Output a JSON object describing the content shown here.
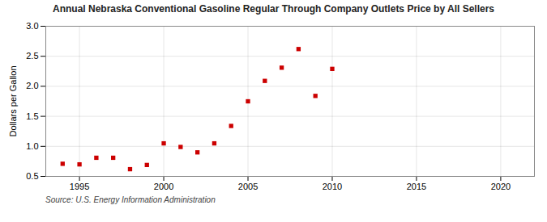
{
  "chart_data": {
    "type": "scatter",
    "title": "Annual Nebraska Conventional Gasoline Regular Through Company Outlets Price by All Sellers",
    "ylabel": "Dollars per Gallon",
    "annotations": [
      "Source: U.S. Energy Information Administration"
    ],
    "x": [
      1994,
      1995,
      1996,
      1997,
      1998,
      1999,
      2000,
      2001,
      2002,
      2003,
      2004,
      2005,
      2006,
      2007,
      2008,
      2009,
      2010
    ],
    "values": [
      0.71,
      0.7,
      0.81,
      0.81,
      0.62,
      0.69,
      1.05,
      0.99,
      0.9,
      1.05,
      1.34,
      1.75,
      2.09,
      2.31,
      2.62,
      1.84,
      2.29
    ],
    "color": "#cc0000",
    "marker": "square",
    "xlim": [
      1993,
      2022
    ],
    "ylim": [
      0.5,
      3.0
    ],
    "xticks": [
      1995,
      2000,
      2005,
      2010,
      2015,
      2020
    ],
    "yticks": [
      0.5,
      {
        "value": 1.0,
        "label": "1.0"
      },
      1.5,
      {
        "value": 2.0,
        "label": "2.0"
      },
      2.5,
      {
        "value": 3.0,
        "label": "3.0"
      }
    ],
    "grid": true
  }
}
